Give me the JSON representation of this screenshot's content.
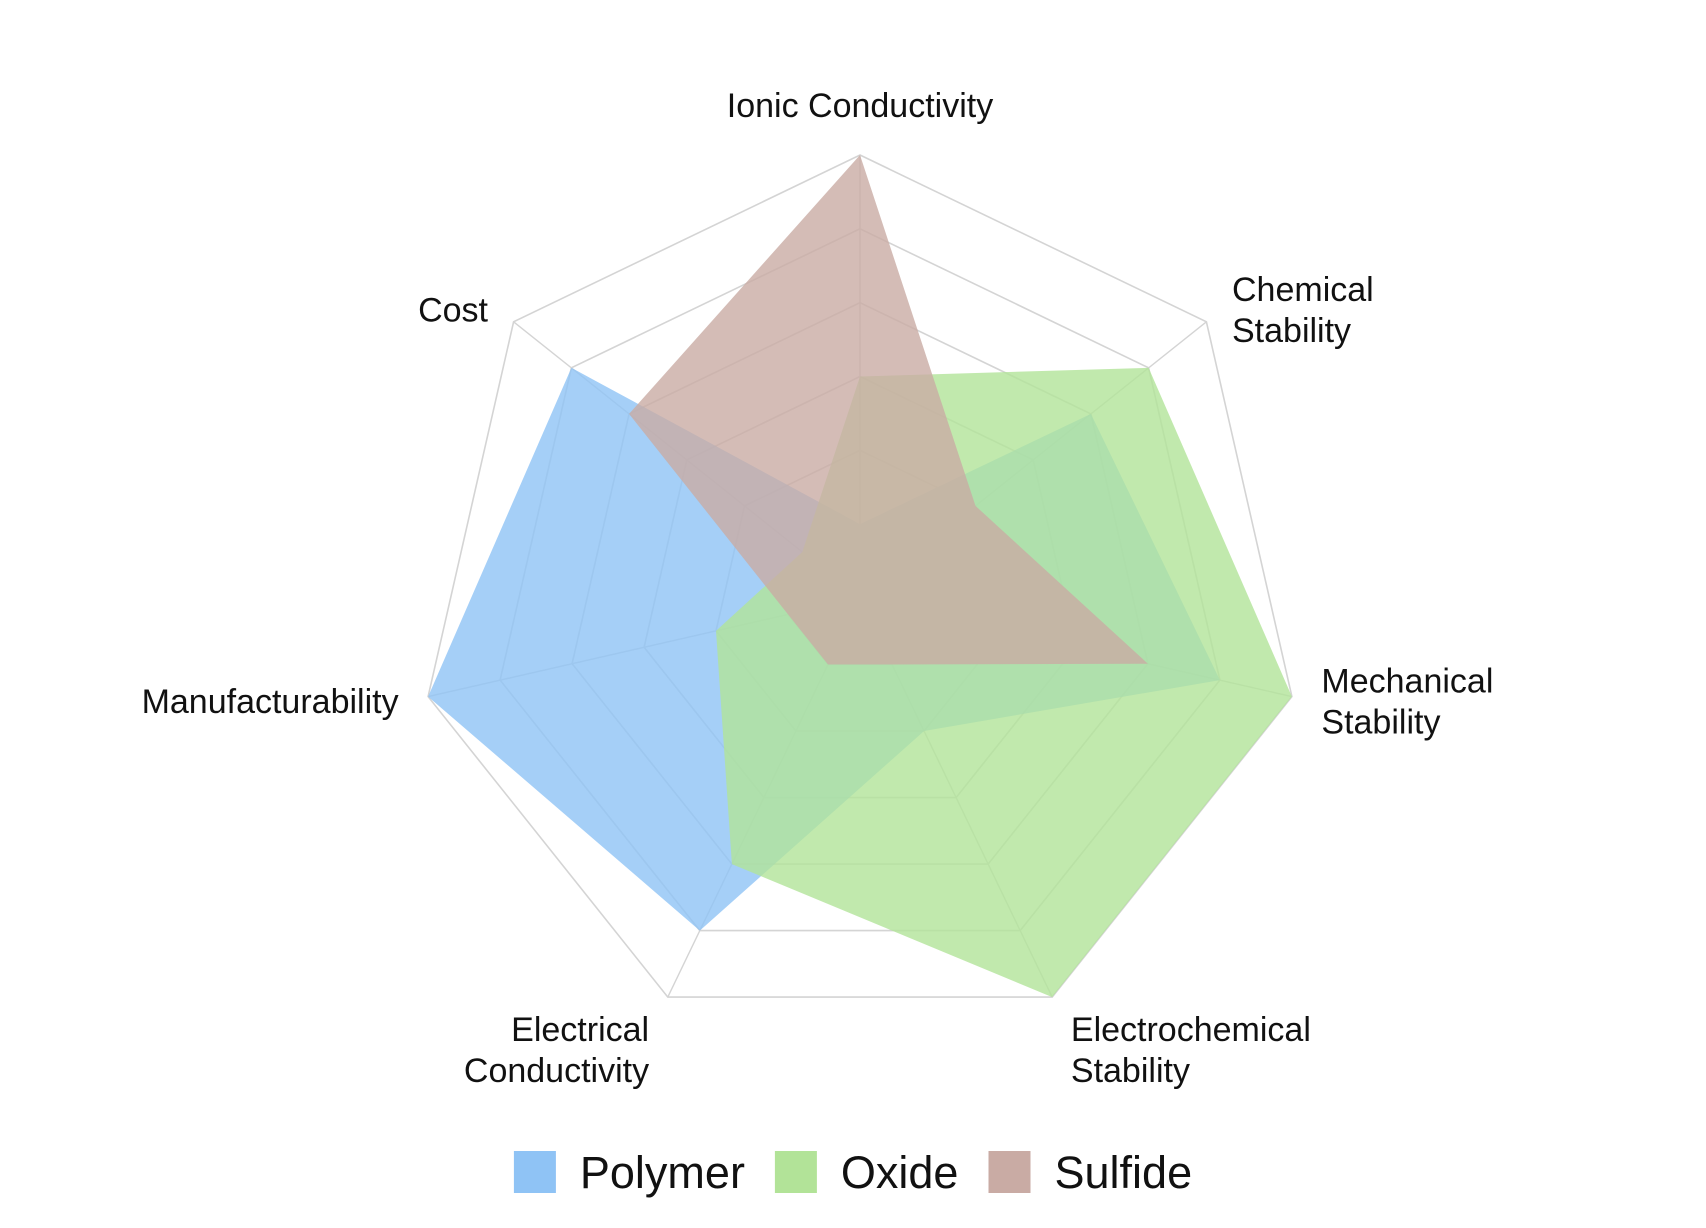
{
  "chart_data": {
    "type": "radar",
    "title": "",
    "axes": [
      "Ionic Conductivity",
      "Chemical Stability",
      "Mechanical Stability",
      "Electrochemical Stability",
      "Electrical Conductivity",
      "Manufacturability",
      "Cost"
    ],
    "axis_label_lines": [
      [
        "Ionic Conductivity"
      ],
      [
        "Chemical",
        "Stability"
      ],
      [
        "Mechanical",
        "Stability"
      ],
      [
        "Electrochemical",
        "Stability"
      ],
      [
        "Electrical",
        "Conductivity"
      ],
      [
        "Manufacturability"
      ],
      [
        "Cost"
      ]
    ],
    "rlim": [
      0,
      6
    ],
    "ring_count": 6,
    "grid": true,
    "legend_position": "bottom",
    "series": [
      {
        "name": "Polymer",
        "values": [
          1,
          4,
          5,
          2,
          5,
          6,
          5
        ],
        "color": "#8fc3f5"
      },
      {
        "name": "Oxide",
        "values": [
          3,
          5,
          6,
          6,
          4,
          2,
          1
        ],
        "color": "#b2e398"
      },
      {
        "name": "Sulfide",
        "values": [
          6,
          2,
          4,
          1,
          1,
          1,
          4
        ],
        "color": "#c9aba4"
      }
    ]
  }
}
